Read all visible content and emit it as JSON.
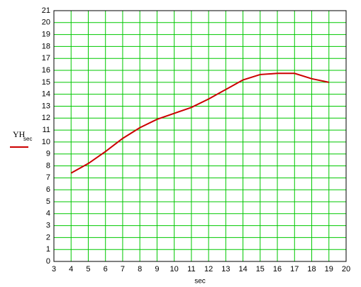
{
  "chart_data": {
    "type": "line",
    "x_label": "sec",
    "x": [
      4,
      5,
      6,
      7,
      8,
      9,
      10,
      11,
      12,
      13,
      14,
      15,
      16,
      17,
      18,
      19
    ],
    "series": [
      {
        "name": "YH",
        "name_subscript": "sec",
        "color": "#cc0000",
        "values": [
          7.4,
          8.2,
          9.2,
          10.3,
          11.2,
          11.9,
          12.4,
          12.9,
          13.6,
          14.4,
          15.2,
          15.65,
          15.75,
          15.75,
          15.3,
          15.0
        ]
      }
    ],
    "xlim": [
      3,
      20
    ],
    "xticks": [
      3,
      4,
      5,
      6,
      7,
      8,
      9,
      10,
      11,
      12,
      13,
      14,
      15,
      16,
      17,
      18,
      19,
      20
    ],
    "ylim": [
      0,
      21
    ],
    "yticks": [
      0,
      1,
      2,
      3,
      4,
      5,
      6,
      7,
      8,
      9,
      10,
      11,
      12,
      13,
      14,
      15,
      16,
      17,
      18,
      19,
      20,
      21
    ],
    "grid": true
  }
}
